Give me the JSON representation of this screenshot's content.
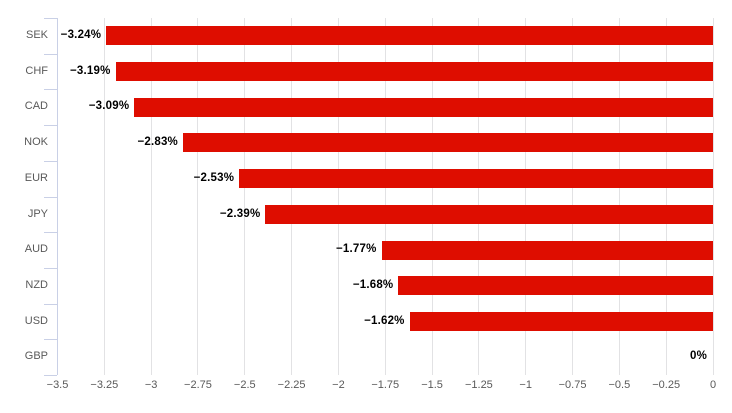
{
  "chart_data": {
    "type": "bar",
    "orientation": "horizontal",
    "title": "",
    "xlabel": "",
    "ylabel": "",
    "categories": [
      "SEK",
      "CHF",
      "CAD",
      "NOK",
      "EUR",
      "JPY",
      "AUD",
      "NZD",
      "USD",
      "GBP"
    ],
    "values": [
      -3.24,
      -3.19,
      -3.09,
      -2.83,
      -2.53,
      -2.39,
      -1.77,
      -1.68,
      -1.62,
      0
    ],
    "value_labels": [
      "−3.24%",
      "−3.19%",
      "−3.09%",
      "−2.83%",
      "−2.53%",
      "−2.39%",
      "−1.77%",
      "−1.68%",
      "−1.62%",
      "0%"
    ],
    "xlim": [
      -3.5,
      0
    ],
    "x_tick_step": 0.25,
    "x_tick_values": [
      -3.5,
      -3.25,
      -3,
      -2.75,
      -2.5,
      -2.25,
      -2,
      -1.75,
      -1.5,
      -1.25,
      -1,
      -0.75,
      -0.5,
      -0.25,
      0
    ],
    "x_tick_labels": [
      "−3.5",
      "−3.25",
      "−3",
      "−2.75",
      "−2.5",
      "−2.25",
      "−2",
      "−1.75",
      "−1.5",
      "−1.25",
      "−1",
      "−0.75",
      "−0.5",
      "−0.25",
      "0"
    ],
    "grid": true,
    "legend": false,
    "colors": {
      "bar": "#de0d00",
      "grid": "#e2e2e4",
      "category_axis": "#c9d0e6",
      "category_label": "#595959",
      "tick_label": "#595959",
      "value_label": "#000000",
      "background": "#ffffff"
    }
  }
}
